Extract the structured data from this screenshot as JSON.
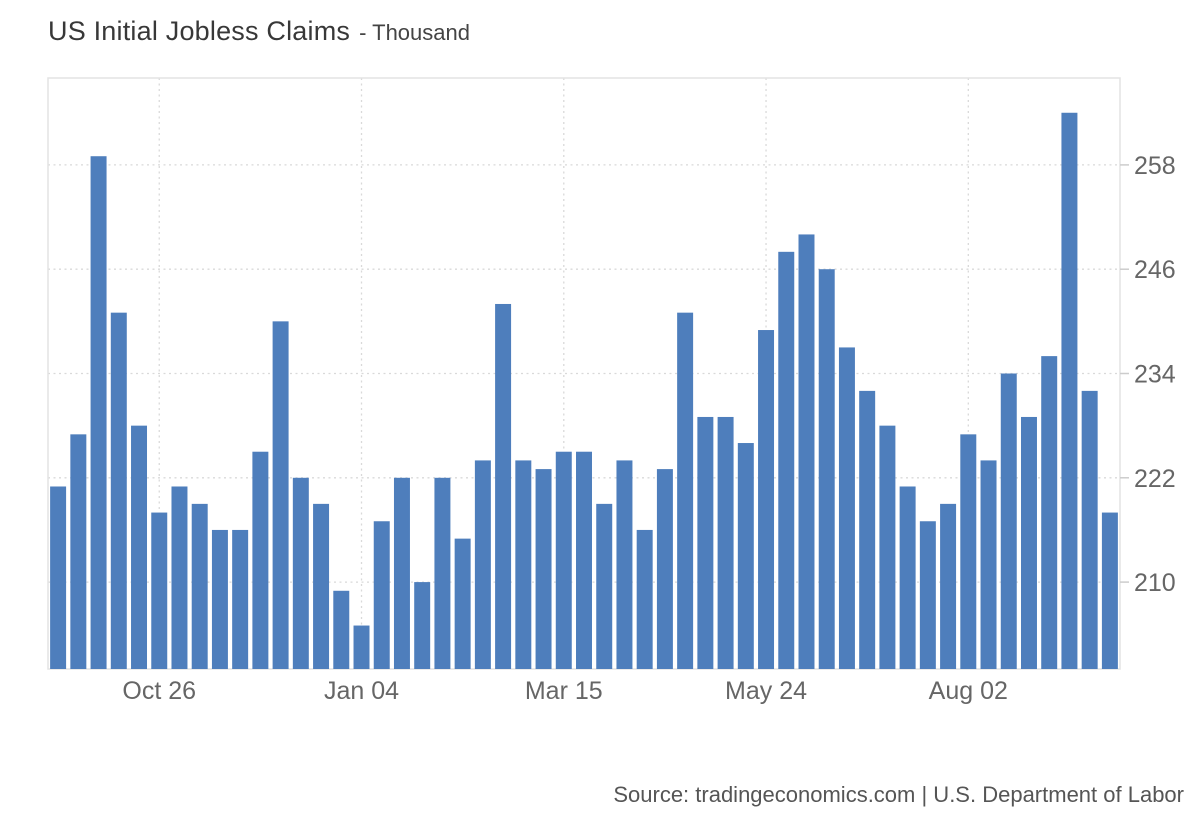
{
  "header": {
    "title": "US Initial Jobless Claims",
    "subtitle": "- Thousand"
  },
  "footer": {
    "source_text": "Source: tradingeconomics.com | U.S. Department of Labor"
  },
  "colors": {
    "bar": "#4e7ebc",
    "grid": "#d9d9d9",
    "plot_border": "#e3e3e3",
    "tick": "#cccccc",
    "axis_label": "#666666",
    "title": "#383838",
    "source": "#555555",
    "background": "#ffffff"
  },
  "chart_data": {
    "type": "bar",
    "title": "US Initial Jobless Claims",
    "unit": "Thousand",
    "n_points": 53,
    "values": [
      221,
      227,
      259,
      241,
      228,
      218,
      221,
      219,
      216,
      216,
      225,
      240,
      222,
      219,
      209,
      205,
      217,
      222,
      210,
      222,
      215,
      224,
      242,
      224,
      223,
      225,
      225,
      219,
      224,
      216,
      223,
      241,
      229,
      229,
      226,
      239,
      248,
      250,
      246,
      237,
      232,
      228,
      221,
      217,
      219,
      227,
      224,
      234,
      229,
      236,
      264,
      232,
      218
    ],
    "xticks": [
      {
        "index": 5,
        "label": "Oct 26"
      },
      {
        "index": 15,
        "label": "Jan 04"
      },
      {
        "index": 25,
        "label": "Mar 15"
      },
      {
        "index": 35,
        "label": "May 24"
      },
      {
        "index": 45,
        "label": "Aug 02"
      }
    ],
    "yticks": [
      210,
      222,
      234,
      246,
      258
    ],
    "ylim": [
      200,
      268
    ],
    "y_axis_side": "right",
    "grid": "dotted",
    "legend": "none"
  }
}
